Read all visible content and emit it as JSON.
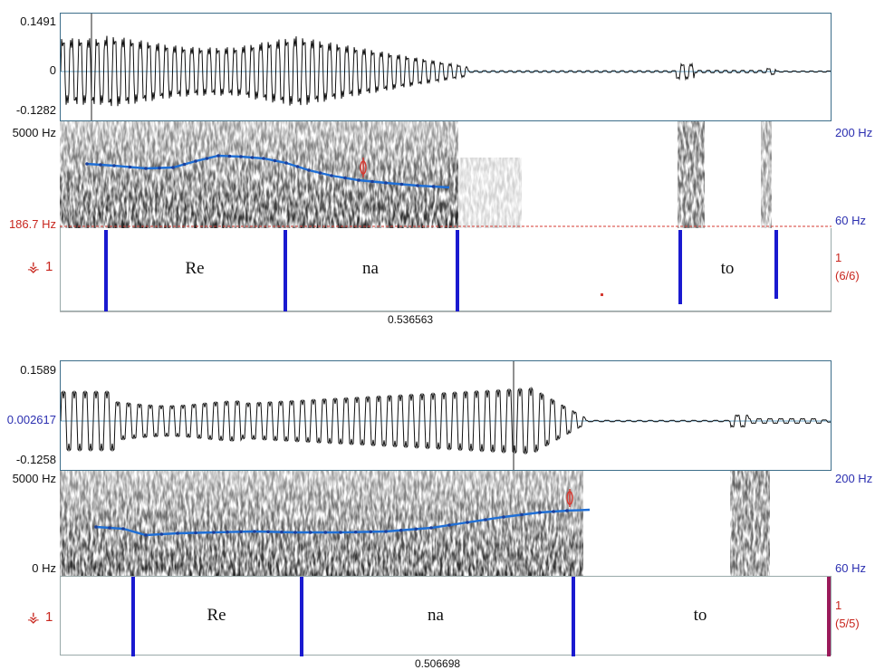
{
  "panels": [
    {
      "waveform": {
        "max_label": "0.1491",
        "zero_label": "0",
        "min_label": "-0.1282"
      },
      "spectrogram": {
        "freq_top": "5000 Hz",
        "freq_bottom": "186.7 Hz",
        "pitch_top": "200 Hz",
        "pitch_bottom": "60 Hz"
      },
      "tier": {
        "icon": "tier-number-icon",
        "number": "1",
        "intervals": [
          {
            "label": "Re"
          },
          {
            "label": "na"
          },
          {
            "label": ""
          },
          {
            "label": "to"
          }
        ],
        "right_count": "1",
        "right_fraction": "(6/6)"
      },
      "cursor_time": "0.536563"
    },
    {
      "waveform": {
        "max_label": "0.1589",
        "zero_label": "0.002617",
        "min_label": "-0.1258"
      },
      "spectrogram": {
        "freq_top": "5000 Hz",
        "freq_bottom": "0 Hz",
        "pitch_top": "200 Hz",
        "pitch_bottom": "60 Hz"
      },
      "tier": {
        "icon": "tier-number-icon",
        "number": "1",
        "intervals": [
          {
            "label": "Re"
          },
          {
            "label": "na"
          },
          {
            "label": "to"
          }
        ],
        "right_count": "1",
        "right_fraction": "(5/5)"
      },
      "cursor_time": "0.506698"
    }
  ],
  "colors": {
    "pitch_line": "#1f6fd6",
    "boundary": "#1a1ad0",
    "axis_red": "#c8261e",
    "axis_blue": "#2b2fb0",
    "frame": "#3d6e8a"
  }
}
